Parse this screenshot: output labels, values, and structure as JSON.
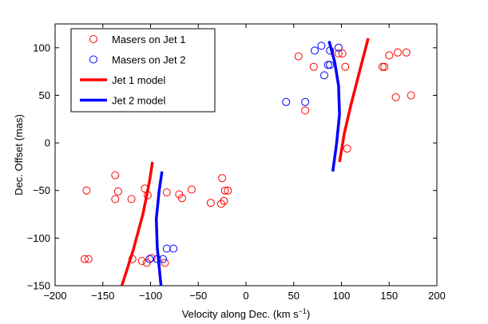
{
  "chart_data": {
    "type": "scatter",
    "xlabel": "Velocity along Dec. (km s",
    "xlabel_sup": "−1",
    "xlabel_suffix": ")",
    "ylabel": "Dec. Offset (mas)",
    "xlim": [
      -200,
      200
    ],
    "ylim": [
      -150,
      125
    ],
    "x_ticks": [
      -200,
      -150,
      -100,
      -50,
      0,
      50,
      100,
      150,
      200
    ],
    "y_ticks": [
      -150,
      -100,
      -50,
      0,
      50,
      100
    ],
    "legend_position": "top-left",
    "series": [
      {
        "name": "Masers on Jet 1",
        "kind": "markers",
        "color": "#ff0000",
        "points": [
          [
            -169,
            -122
          ],
          [
            -165,
            -122
          ],
          [
            -167,
            -50
          ],
          [
            -137,
            -34
          ],
          [
            -137,
            -59
          ],
          [
            -134,
            -51
          ],
          [
            -120,
            -59
          ],
          [
            -119,
            -122
          ],
          [
            -109,
            -124
          ],
          [
            -106,
            -48
          ],
          [
            -103,
            -55
          ],
          [
            -104,
            -126
          ],
          [
            -99,
            -121
          ],
          [
            -85,
            -126
          ],
          [
            -83,
            -52
          ],
          [
            -70,
            -54
          ],
          [
            -67,
            -58
          ],
          [
            -57,
            -49
          ],
          [
            -37,
            -63
          ],
          [
            -26,
            -64
          ],
          [
            -25,
            -37
          ],
          [
            -23,
            -61
          ],
          [
            -22,
            -50
          ],
          [
            -19,
            -50
          ],
          [
            55,
            91
          ],
          [
            62,
            34
          ],
          [
            71,
            80
          ],
          [
            97,
            94
          ],
          [
            101,
            94
          ],
          [
            104,
            80
          ],
          [
            106,
            -6
          ],
          [
            143,
            80
          ],
          [
            145,
            80
          ],
          [
            150,
            92
          ],
          [
            159,
            95
          ],
          [
            157,
            48
          ],
          [
            168,
            95
          ],
          [
            173,
            50
          ]
        ]
      },
      {
        "name": "Masers on Jet 2",
        "kind": "markers",
        "color": "#0000ff",
        "points": [
          [
            -101,
            -122
          ],
          [
            -93,
            -122
          ],
          [
            -87,
            -122
          ],
          [
            -83,
            -111
          ],
          [
            -76,
            -111
          ],
          [
            42,
            43
          ],
          [
            62,
            43
          ],
          [
            72,
            97
          ],
          [
            79,
            102
          ],
          [
            82,
            71
          ],
          [
            86,
            82
          ],
          [
            88,
            82
          ],
          [
            88,
            97
          ],
          [
            97,
            100
          ]
        ]
      },
      {
        "name": "Jet 1 model",
        "kind": "line",
        "color": "#ff0000",
        "points": [
          [
            -130,
            -150
          ],
          [
            -118,
            -112
          ],
          [
            -108,
            -75
          ],
          [
            -101,
            -40
          ],
          [
            -98,
            -20
          ],
          [
            98,
            -20
          ],
          [
            103,
            10
          ],
          [
            110,
            40
          ],
          [
            119,
            75
          ],
          [
            128,
            110
          ]
        ]
      },
      {
        "name": "Jet 2 model",
        "kind": "line",
        "color": "#0000ff",
        "points": [
          [
            -89,
            -150
          ],
          [
            -93,
            -110
          ],
          [
            -94,
            -80
          ],
          [
            -91,
            -50
          ],
          [
            -88,
            -30
          ],
          [
            91,
            -30
          ],
          [
            95,
            0
          ],
          [
            98,
            30
          ],
          [
            97,
            60
          ],
          [
            93,
            85
          ],
          [
            87,
            107
          ]
        ]
      }
    ]
  }
}
